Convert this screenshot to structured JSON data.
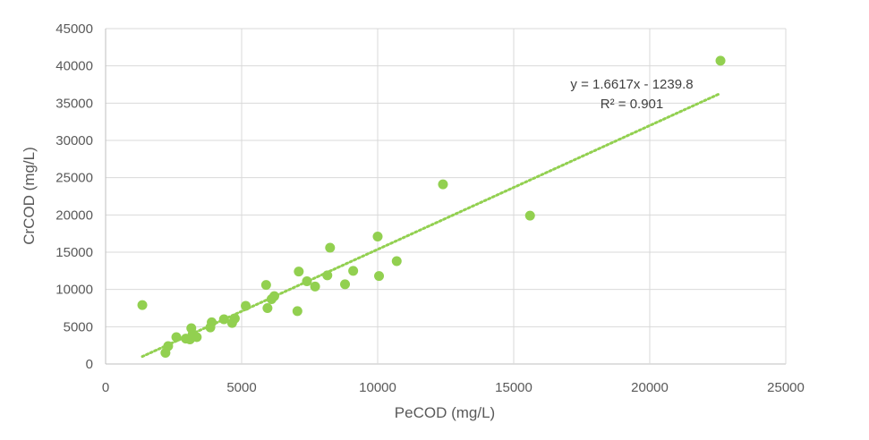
{
  "chart_data": {
    "type": "scatter",
    "title": "",
    "xlabel": "PeCOD (mg/L)",
    "ylabel": "CrCOD (mg/L)",
    "xlim": [
      0,
      25000
    ],
    "ylim": [
      0,
      45000
    ],
    "xticks": [
      0,
      5000,
      10000,
      15000,
      20000,
      25000
    ],
    "yticks": [
      0,
      5000,
      10000,
      15000,
      20000,
      25000,
      30000,
      35000,
      40000,
      45000
    ],
    "grid": true,
    "marker_color": "#92d050",
    "trendline_color": "#92d050",
    "points": [
      {
        "x": 1350,
        "y": 7900
      },
      {
        "x": 2200,
        "y": 1500
      },
      {
        "x": 2300,
        "y": 2400
      },
      {
        "x": 2600,
        "y": 3600
      },
      {
        "x": 2950,
        "y": 3400
      },
      {
        "x": 3100,
        "y": 3300
      },
      {
        "x": 3150,
        "y": 4800
      },
      {
        "x": 3200,
        "y": 4000
      },
      {
        "x": 3350,
        "y": 3600
      },
      {
        "x": 3850,
        "y": 4900
      },
      {
        "x": 3900,
        "y": 5600
      },
      {
        "x": 4350,
        "y": 6000
      },
      {
        "x": 4650,
        "y": 5500
      },
      {
        "x": 4750,
        "y": 6100
      },
      {
        "x": 5150,
        "y": 7800
      },
      {
        "x": 5900,
        "y": 10600
      },
      {
        "x": 5950,
        "y": 7500
      },
      {
        "x": 6100,
        "y": 8700
      },
      {
        "x": 6200,
        "y": 9100
      },
      {
        "x": 7050,
        "y": 7100
      },
      {
        "x": 7100,
        "y": 12400
      },
      {
        "x": 7400,
        "y": 11100
      },
      {
        "x": 7700,
        "y": 10400
      },
      {
        "x": 8150,
        "y": 11900
      },
      {
        "x": 8250,
        "y": 15600
      },
      {
        "x": 8800,
        "y": 10700
      },
      {
        "x": 9100,
        "y": 12500
      },
      {
        "x": 10000,
        "y": 17100
      },
      {
        "x": 10050,
        "y": 11800
      },
      {
        "x": 10700,
        "y": 13800
      },
      {
        "x": 12400,
        "y": 24100
      },
      {
        "x": 15600,
        "y": 19900
      },
      {
        "x": 22600,
        "y": 40700
      }
    ],
    "trendline": {
      "slope": 1.6617,
      "intercept": -1239.8,
      "x_range": [
        1350,
        22600
      ],
      "equation": "y = 1.6617x - 1239.8",
      "r_squared": "R² = 0.901"
    }
  }
}
